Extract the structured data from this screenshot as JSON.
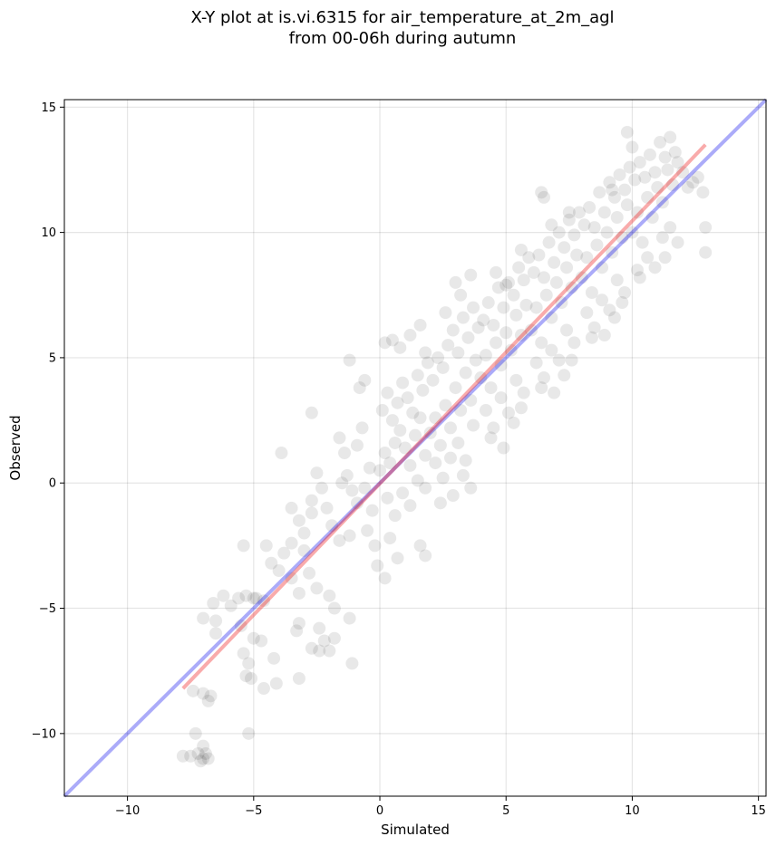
{
  "chart_data": {
    "type": "scatter",
    "title_lines": [
      "X-Y plot at is.vi.6315 for air_temperature_at_2m_agl",
      "from 00-06h during autumn"
    ],
    "xlabel": "Simulated",
    "ylabel": "Observed",
    "xlim": [
      -12.5,
      15.3
    ],
    "ylim": [
      -12.5,
      15.3
    ],
    "xticks": [
      -10,
      -5,
      0,
      5,
      10,
      15
    ],
    "yticks": [
      -10,
      -5,
      0,
      5,
      10,
      15
    ],
    "xtick_labels": [
      "−10",
      "−5",
      "0",
      "5",
      "10",
      "15"
    ],
    "ytick_labels": [
      "−10",
      "−5",
      "0",
      "5",
      "10",
      "15"
    ],
    "grid": true,
    "point_color": "#000000",
    "point_alpha": 0.09,
    "lines": [
      {
        "role": "one-to-one",
        "color": "#0000ee",
        "alpha": 0.33,
        "x": [
          -12.5,
          15.3
        ],
        "y": [
          -12.5,
          15.3
        ]
      },
      {
        "role": "regression",
        "color": "#ee0000",
        "alpha": 0.33,
        "x": [
          -7.8,
          12.9
        ],
        "y": [
          -8.2,
          13.5
        ]
      }
    ],
    "points": [
      [
        -7.8,
        -10.9
      ],
      [
        -7.5,
        -10.9
      ],
      [
        -7.2,
        -10.8
      ],
      [
        -7.0,
        -11.0
      ],
      [
        -6.8,
        -11.0
      ],
      [
        -7.3,
        -10.0
      ],
      [
        -7.0,
        -10.5
      ],
      [
        -6.9,
        -10.8
      ],
      [
        -7.1,
        -11.1
      ],
      [
        -7.4,
        -8.3
      ],
      [
        -7.0,
        -8.4
      ],
      [
        -6.7,
        -8.5
      ],
      [
        -6.8,
        -8.7
      ],
      [
        -7.0,
        -5.4
      ],
      [
        -6.6,
        -4.8
      ],
      [
        -6.2,
        -4.5
      ],
      [
        -5.9,
        -4.9
      ],
      [
        -5.6,
        -4.6
      ],
      [
        -5.3,
        -4.5
      ],
      [
        -5.0,
        -4.6
      ],
      [
        -6.5,
        -5.5
      ],
      [
        -6.5,
        -6.0
      ],
      [
        -5.5,
        -5.7
      ],
      [
        -5.0,
        -6.2
      ],
      [
        -5.4,
        -6.8
      ],
      [
        -5.2,
        -7.2
      ],
      [
        -4.7,
        -6.3
      ],
      [
        -4.2,
        -7.0
      ],
      [
        -4.1,
        -8.0
      ],
      [
        -5.3,
        -7.7
      ],
      [
        -5.1,
        -7.8
      ],
      [
        -4.6,
        -8.2
      ],
      [
        -5.4,
        -2.5
      ],
      [
        -5.2,
        -10.0
      ],
      [
        -4.5,
        -2.5
      ],
      [
        -4.3,
        -3.2
      ],
      [
        -4.0,
        -3.5
      ],
      [
        -3.8,
        -2.8
      ],
      [
        -3.5,
        -3.8
      ],
      [
        -3.2,
        -4.4
      ],
      [
        -3.5,
        -2.4
      ],
      [
        -3.0,
        -2.7
      ],
      [
        -2.8,
        -3.6
      ],
      [
        -2.5,
        -4.2
      ],
      [
        -2.0,
        -4.5
      ],
      [
        -1.8,
        -5.0
      ],
      [
        -2.4,
        -5.8
      ],
      [
        -3.2,
        -5.6
      ],
      [
        -3.3,
        -5.9
      ],
      [
        -2.7,
        -6.6
      ],
      [
        -2.4,
        -6.7
      ],
      [
        -2.0,
        -6.7
      ],
      [
        -2.2,
        -6.3
      ],
      [
        -1.8,
        -6.2
      ],
      [
        -1.2,
        -5.4
      ],
      [
        -1.1,
        -7.2
      ],
      [
        -3.2,
        -7.8
      ],
      [
        -4.6,
        -4.7
      ],
      [
        -4.9,
        -4.6
      ],
      [
        -3.5,
        -1.0
      ],
      [
        -3.2,
        -1.5
      ],
      [
        -2.7,
        -0.7
      ],
      [
        -2.5,
        0.4
      ],
      [
        -2.3,
        -0.2
      ],
      [
        -2.1,
        -1.0
      ],
      [
        -1.9,
        -1.7
      ],
      [
        -1.6,
        -2.3
      ],
      [
        -1.2,
        -2.1
      ],
      [
        -3.0,
        -2.0
      ],
      [
        -2.7,
        -1.2
      ],
      [
        -1.5,
        0.0
      ],
      [
        -1.3,
        0.3
      ],
      [
        -1.1,
        -0.3
      ],
      [
        -0.9,
        -0.8
      ],
      [
        -1.6,
        1.8
      ],
      [
        -1.4,
        1.2
      ],
      [
        -0.9,
        1.5
      ],
      [
        -0.7,
        2.2
      ],
      [
        -0.4,
        0.6
      ],
      [
        -0.6,
        -0.2
      ],
      [
        -0.3,
        -1.1
      ],
      [
        -0.5,
        -1.9
      ],
      [
        -0.2,
        -2.5
      ],
      [
        -0.1,
        -3.3
      ],
      [
        0.2,
        -3.8
      ],
      [
        -2.7,
        2.8
      ],
      [
        -3.9,
        1.2
      ],
      [
        -1.2,
        4.9
      ],
      [
        -0.8,
        3.8
      ],
      [
        -0.6,
        4.1
      ],
      [
        0.0,
        0.5
      ],
      [
        0.2,
        1.2
      ],
      [
        0.4,
        0.8
      ],
      [
        0.6,
        1.6
      ],
      [
        0.8,
        2.1
      ],
      [
        1.0,
        1.4
      ],
      [
        1.2,
        0.7
      ],
      [
        1.4,
        1.9
      ],
      [
        1.6,
        2.6
      ],
      [
        1.8,
        1.1
      ],
      [
        0.1,
        2.9
      ],
      [
        0.3,
        3.6
      ],
      [
        0.5,
        2.5
      ],
      [
        0.7,
        3.2
      ],
      [
        0.9,
        4.0
      ],
      [
        1.1,
        3.4
      ],
      [
        1.3,
        2.8
      ],
      [
        1.5,
        4.3
      ],
      [
        1.7,
        3.7
      ],
      [
        1.9,
        4.8
      ],
      [
        0.2,
        5.6
      ],
      [
        0.5,
        5.7
      ],
      [
        0.8,
        5.4
      ],
      [
        1.2,
        5.9
      ],
      [
        1.6,
        6.3
      ],
      [
        1.8,
        5.2
      ],
      [
        0.3,
        -0.6
      ],
      [
        0.6,
        -1.3
      ],
      [
        0.9,
        -0.4
      ],
      [
        1.2,
        -0.9
      ],
      [
        1.5,
        0.1
      ],
      [
        1.8,
        -0.2
      ],
      [
        0.4,
        -2.2
      ],
      [
        0.7,
        -3.0
      ],
      [
        1.6,
        -2.5
      ],
      [
        1.8,
        -2.9
      ],
      [
        2.0,
        2.0
      ],
      [
        2.2,
        2.6
      ],
      [
        2.4,
        1.5
      ],
      [
        2.6,
        3.1
      ],
      [
        2.8,
        2.2
      ],
      [
        3.0,
        3.8
      ],
      [
        3.2,
        2.9
      ],
      [
        3.4,
        4.4
      ],
      [
        3.6,
        3.3
      ],
      [
        3.8,
        4.9
      ],
      [
        2.1,
        4.1
      ],
      [
        2.3,
        5.0
      ],
      [
        2.5,
        4.6
      ],
      [
        2.7,
        5.5
      ],
      [
        2.9,
        6.1
      ],
      [
        3.1,
        5.2
      ],
      [
        3.3,
        6.6
      ],
      [
        3.5,
        5.8
      ],
      [
        3.7,
        7.0
      ],
      [
        3.9,
        6.2
      ],
      [
        2.2,
        0.8
      ],
      [
        2.5,
        0.2
      ],
      [
        2.8,
        1.0
      ],
      [
        3.1,
        1.6
      ],
      [
        3.4,
        0.9
      ],
      [
        3.7,
        2.3
      ],
      [
        2.4,
        -0.8
      ],
      [
        2.9,
        -0.5
      ],
      [
        3.3,
        0.3
      ],
      [
        3.6,
        -0.2
      ],
      [
        2.6,
        6.8
      ],
      [
        3.2,
        7.5
      ],
      [
        3.6,
        8.3
      ],
      [
        3.0,
        8.0
      ],
      [
        4.0,
        4.2
      ],
      [
        4.2,
        5.1
      ],
      [
        4.4,
        3.8
      ],
      [
        4.6,
        5.6
      ],
      [
        4.8,
        4.7
      ],
      [
        5.0,
        6.0
      ],
      [
        5.2,
        5.3
      ],
      [
        5.4,
        6.7
      ],
      [
        5.6,
        5.9
      ],
      [
        5.8,
        7.1
      ],
      [
        4.1,
        6.5
      ],
      [
        4.3,
        7.2
      ],
      [
        4.5,
        6.3
      ],
      [
        4.7,
        7.8
      ],
      [
        4.9,
        7.0
      ],
      [
        5.1,
        8.0
      ],
      [
        5.3,
        7.5
      ],
      [
        5.5,
        8.6
      ],
      [
        5.7,
        8.1
      ],
      [
        5.9,
        9.0
      ],
      [
        4.2,
        2.9
      ],
      [
        4.5,
        2.2
      ],
      [
        4.8,
        3.4
      ],
      [
        5.1,
        2.8
      ],
      [
        5.4,
        4.1
      ],
      [
        5.7,
        3.6
      ],
      [
        4.4,
        1.8
      ],
      [
        4.9,
        1.4
      ],
      [
        5.3,
        2.4
      ],
      [
        5.6,
        3.0
      ],
      [
        4.6,
        8.4
      ],
      [
        5.0,
        7.9
      ],
      [
        5.6,
        9.3
      ],
      [
        6.0,
        6.1
      ],
      [
        6.2,
        7.0
      ],
      [
        6.4,
        5.6
      ],
      [
        6.6,
        7.5
      ],
      [
        6.8,
        6.6
      ],
      [
        7.0,
        8.0
      ],
      [
        7.2,
        7.2
      ],
      [
        7.4,
        8.6
      ],
      [
        7.6,
        7.8
      ],
      [
        7.8,
        9.1
      ],
      [
        6.1,
        8.4
      ],
      [
        6.3,
        9.1
      ],
      [
        6.5,
        8.2
      ],
      [
        6.7,
        9.6
      ],
      [
        6.9,
        8.8
      ],
      [
        7.1,
        10.0
      ],
      [
        7.3,
        9.4
      ],
      [
        7.5,
        10.5
      ],
      [
        7.7,
        9.9
      ],
      [
        7.9,
        10.8
      ],
      [
        6.2,
        4.8
      ],
      [
        6.5,
        4.2
      ],
      [
        6.8,
        5.3
      ],
      [
        7.1,
        4.9
      ],
      [
        7.4,
        6.1
      ],
      [
        7.7,
        5.6
      ],
      [
        6.4,
        3.8
      ],
      [
        6.9,
        3.6
      ],
      [
        7.3,
        4.3
      ],
      [
        7.6,
        4.9
      ],
      [
        6.4,
        11.6
      ],
      [
        6.5,
        11.4
      ],
      [
        6.8,
        10.3
      ],
      [
        7.5,
        10.8
      ],
      [
        8.0,
        8.2
      ],
      [
        8.2,
        9.0
      ],
      [
        8.4,
        7.6
      ],
      [
        8.6,
        9.5
      ],
      [
        8.8,
        8.6
      ],
      [
        9.0,
        10.0
      ],
      [
        9.2,
        9.2
      ],
      [
        9.4,
        10.6
      ],
      [
        9.6,
        9.8
      ],
      [
        9.8,
        11.1
      ],
      [
        8.1,
        10.3
      ],
      [
        8.3,
        11.0
      ],
      [
        8.5,
        10.2
      ],
      [
        8.7,
        11.6
      ],
      [
        8.9,
        10.8
      ],
      [
        9.1,
        12.0
      ],
      [
        9.3,
        11.4
      ],
      [
        9.5,
        12.3
      ],
      [
        9.7,
        11.7
      ],
      [
        9.9,
        12.6
      ],
      [
        8.2,
        6.8
      ],
      [
        8.5,
        6.2
      ],
      [
        8.8,
        7.3
      ],
      [
        9.1,
        6.9
      ],
      [
        9.4,
        8.1
      ],
      [
        9.7,
        7.6
      ],
      [
        8.4,
        5.8
      ],
      [
        8.9,
        5.9
      ],
      [
        9.3,
        6.6
      ],
      [
        9.6,
        7.2
      ],
      [
        9.8,
        14.0
      ],
      [
        10.0,
        13.4
      ],
      [
        9.2,
        11.7
      ],
      [
        10.0,
        10.0
      ],
      [
        10.2,
        10.8
      ],
      [
        10.4,
        9.6
      ],
      [
        10.6,
        11.4
      ],
      [
        10.8,
        10.6
      ],
      [
        11.0,
        11.8
      ],
      [
        11.2,
        11.2
      ],
      [
        11.4,
        12.5
      ],
      [
        11.6,
        11.9
      ],
      [
        11.8,
        12.8
      ],
      [
        10.1,
        12.1
      ],
      [
        10.3,
        12.8
      ],
      [
        10.5,
        12.2
      ],
      [
        10.7,
        13.1
      ],
      [
        10.9,
        12.4
      ],
      [
        11.1,
        13.6
      ],
      [
        11.3,
        13.0
      ],
      [
        11.5,
        13.8
      ],
      [
        11.7,
        13.2
      ],
      [
        12.0,
        12.4
      ],
      [
        10.2,
        8.5
      ],
      [
        10.6,
        9.0
      ],
      [
        10.9,
        8.6
      ],
      [
        11.2,
        9.8
      ],
      [
        11.5,
        10.2
      ],
      [
        11.8,
        9.6
      ],
      [
        12.2,
        11.8
      ],
      [
        12.4,
        12.0
      ],
      [
        12.6,
        12.2
      ],
      [
        12.8,
        11.6
      ],
      [
        12.9,
        10.2
      ],
      [
        12.9,
        9.2
      ],
      [
        11.3,
        9.0
      ],
      [
        10.3,
        8.2
      ]
    ]
  }
}
